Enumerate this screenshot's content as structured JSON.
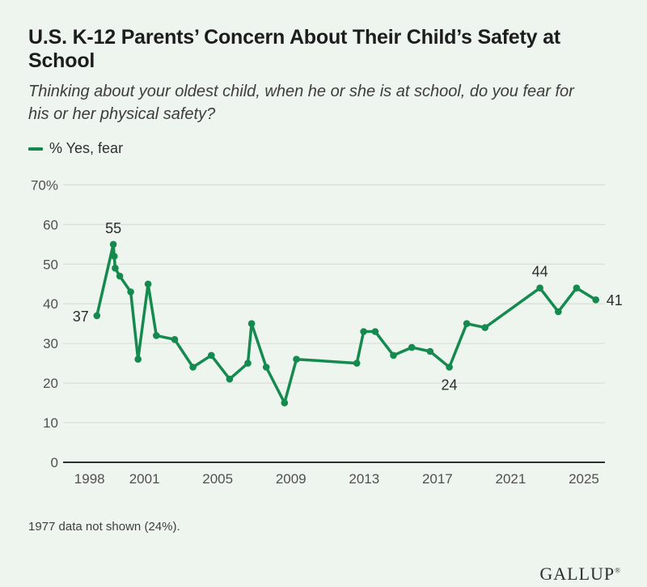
{
  "header": {
    "title": "U.S. K-12 Parents’ Concern About Their Child’s Safety at School",
    "title_lines": [
      "U.S. K-12 Parents’ Concern About Their Child’s Safety at",
      "School"
    ],
    "subtitle": "Thinking about your oldest child, when he or she is at school, do you fear for his or her physical safety?",
    "subtitle_lines": [
      "Thinking about your oldest child, when he or she is at school, do you fear for",
      "his or her physical safety?"
    ],
    "legend_label": "% Yes, fear"
  },
  "footer": {
    "note": "1977 data not shown (24%).",
    "brand": "GALLUP",
    "brand_mark": "®"
  },
  "colors": {
    "background": "#eef4ee",
    "line": "#148a4f",
    "grid": "#d8ded6",
    "axis": "#2f2f2f",
    "tick_text": "#505050",
    "annotation_text": "#2c2c2c"
  },
  "chart_data": {
    "type": "line",
    "title": "U.S. K-12 Parents’ Concern About Their Child’s Safety at School",
    "series_name": "% Yes, fear",
    "xlabel": "",
    "ylabel": "% Yes, fear",
    "ylim": [
      0,
      70
    ],
    "xlim": [
      1996.5,
      2026.2
    ],
    "grid": "horizontal",
    "legend_position": "top-left",
    "yticks": [
      {
        "value": 0,
        "label": "0"
      },
      {
        "value": 10,
        "label": "10"
      },
      {
        "value": 20,
        "label": "20"
      },
      {
        "value": 30,
        "label": "30"
      },
      {
        "value": 40,
        "label": "40"
      },
      {
        "value": 50,
        "label": "50"
      },
      {
        "value": 60,
        "label": "60"
      },
      {
        "value": 70,
        "label": "70%"
      }
    ],
    "xticks": [
      {
        "value": 1998,
        "label": "1998"
      },
      {
        "value": 2001,
        "label": "2001"
      },
      {
        "value": 2005,
        "label": "2005"
      },
      {
        "value": 2009,
        "label": "2009"
      },
      {
        "value": 2013,
        "label": "2013"
      },
      {
        "value": 2017,
        "label": "2017"
      },
      {
        "value": 2021,
        "label": "2021"
      },
      {
        "value": 2025,
        "label": "2025"
      }
    ],
    "points": [
      {
        "year": 1998.4,
        "value": 37,
        "label": "37",
        "label_pos": "left"
      },
      {
        "year": 1999.3,
        "value": 55,
        "label": "55",
        "label_pos": "above"
      },
      {
        "year": 1999.35,
        "value": 52
      },
      {
        "year": 1999.4,
        "value": 49
      },
      {
        "year": 1999.65,
        "value": 47
      },
      {
        "year": 2000.25,
        "value": 43
      },
      {
        "year": 2000.65,
        "value": 26
      },
      {
        "year": 2001.2,
        "value": 45
      },
      {
        "year": 2001.65,
        "value": 32
      },
      {
        "year": 2002.65,
        "value": 31
      },
      {
        "year": 2003.65,
        "value": 24
      },
      {
        "year": 2004.65,
        "value": 27
      },
      {
        "year": 2005.65,
        "value": 21
      },
      {
        "year": 2006.65,
        "value": 25
      },
      {
        "year": 2006.85,
        "value": 35
      },
      {
        "year": 2007.65,
        "value": 24
      },
      {
        "year": 2008.65,
        "value": 15
      },
      {
        "year": 2009.3,
        "value": 26
      },
      {
        "year": 2012.6,
        "value": 25
      },
      {
        "year": 2012.97,
        "value": 33
      },
      {
        "year": 2013.6,
        "value": 33
      },
      {
        "year": 2014.6,
        "value": 27
      },
      {
        "year": 2015.6,
        "value": 29
      },
      {
        "year": 2016.6,
        "value": 28
      },
      {
        "year": 2017.65,
        "value": 24,
        "label": "24",
        "label_pos": "below"
      },
      {
        "year": 2018.6,
        "value": 35
      },
      {
        "year": 2019.6,
        "value": 34
      },
      {
        "year": 2022.6,
        "value": 44,
        "label": "44",
        "label_pos": "above"
      },
      {
        "year": 2023.6,
        "value": 38
      },
      {
        "year": 2024.6,
        "value": 44
      },
      {
        "year": 2025.65,
        "value": 41,
        "label": "41",
        "label_pos": "right"
      }
    ]
  }
}
